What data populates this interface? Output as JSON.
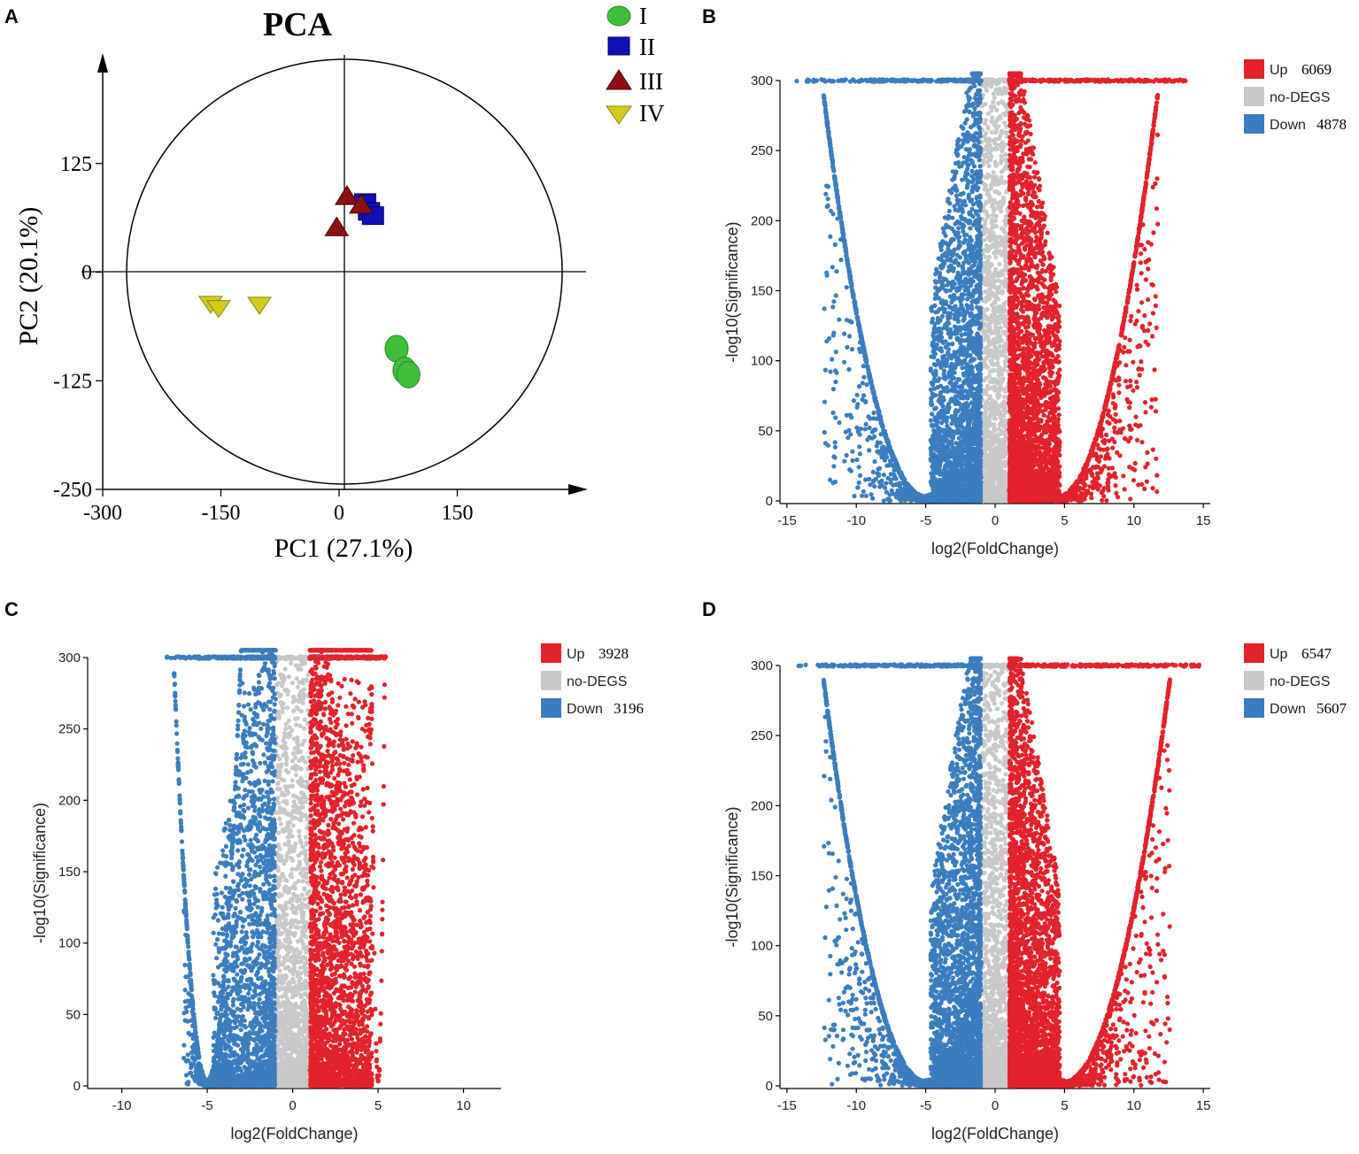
{
  "colors": {
    "up": "#e3222b",
    "nodeg": "#c8c8c8",
    "down": "#3a7dbf",
    "group1": "#3fbf3a",
    "group2": "#1010b8",
    "group3": "#8b1010",
    "group4": "#d4cc1c"
  },
  "chart_data": [
    {
      "panel": "A",
      "type": "scatter",
      "title": "PCA",
      "xlabel": "PC1 (27.1%)",
      "ylabel": "PC2 (20.1%)",
      "xlim": [
        -300,
        300
      ],
      "ylim": [
        -250,
        250
      ],
      "xticks": [
        -300,
        -150,
        0,
        150
      ],
      "yticks": [
        -250,
        -125,
        0,
        125
      ],
      "xtick_labels": [
        "-300",
        "-150",
        "0",
        "150"
      ],
      "ytick_labels": [
        "-250",
        "-125",
        "0",
        "125"
      ],
      "legend": [
        "I",
        "II",
        "III",
        "IV"
      ],
      "series": [
        {
          "name": "I",
          "marker": "ellipse",
          "color_key": "group1",
          "points": [
            [
              73,
              -88
            ],
            [
              83,
              -113
            ],
            [
              88,
              -118
            ]
          ]
        },
        {
          "name": "II",
          "marker": "square",
          "color_key": "group2",
          "points": [
            [
              33,
              80
            ],
            [
              38,
              70
            ],
            [
              43,
              65
            ]
          ]
        },
        {
          "name": "III",
          "marker": "triangle-up",
          "color_key": "group3",
          "points": [
            [
              10,
              88
            ],
            [
              28,
              78
            ],
            [
              -3,
              52
            ]
          ]
        },
        {
          "name": "IV",
          "marker": "triangle-down",
          "color_key": "group4",
          "points": [
            [
              -163,
              -37
            ],
            [
              -153,
              -42
            ],
            [
              -101,
              -38
            ]
          ]
        }
      ]
    },
    {
      "panel": "B",
      "type": "scatter",
      "variant": "volcano",
      "xlabel": "log2(FoldChange)",
      "ylabel": "-log10(Significance)",
      "xlim": [
        -15.5,
        15.5
      ],
      "ylim": [
        0,
        300
      ],
      "xticks": [
        -15,
        -10,
        -5,
        0,
        5,
        10,
        15
      ],
      "yticks": [
        0,
        50,
        100,
        150,
        200,
        250,
        300
      ],
      "xtick_labels": [
        "-15",
        "-10",
        "-5",
        "0",
        "5",
        "10",
        "15"
      ],
      "ytick_labels": [
        "0",
        "50",
        "100",
        "150",
        "200",
        "250",
        "300"
      ],
      "legend": [
        {
          "label": "Up",
          "count": "6069",
          "color_key": "up"
        },
        {
          "label": "no-DEGS",
          "count": "",
          "color_key": "nodeg"
        },
        {
          "label": "Down",
          "count": "4878",
          "color_key": "down"
        }
      ],
      "up_count": 6069,
      "down_count": 4878,
      "threshold_log2fc": 1,
      "left_curve_min_x": -5,
      "right_curve_min_x": 4.5,
      "cap_left_x": -14.5,
      "cap_right_x": 13.8
    },
    {
      "panel": "C",
      "type": "scatter",
      "variant": "volcano",
      "xlabel": "log2(FoldChange)",
      "ylabel": "-log10(Significance)",
      "xlim": [
        -12,
        12.2
      ],
      "ylim": [
        0,
        300
      ],
      "xticks": [
        -10,
        -5,
        0,
        5,
        10
      ],
      "yticks": [
        0,
        50,
        100,
        150,
        200,
        250,
        300
      ],
      "xtick_labels": [
        "-10",
        "-5",
        "0",
        "5",
        "10"
      ],
      "ytick_labels": [
        "0",
        "50",
        "100",
        "150",
        "200",
        "250",
        "300"
      ],
      "legend": [
        {
          "label": "Up",
          "count": "3928",
          "color_key": "up"
        },
        {
          "label": "no-DEGS",
          "count": "",
          "color_key": "nodeg"
        },
        {
          "label": "Down",
          "count": "3196",
          "color_key": "down"
        }
      ],
      "up_count": 3928,
      "down_count": 3196,
      "threshold_log2fc": 1,
      "left_curve_min_x": -5,
      "right_curve_min_x": 5,
      "cap_left_x": -7.5,
      "cap_right_x": 5.5
    },
    {
      "panel": "D",
      "type": "scatter",
      "variant": "volcano",
      "xlabel": "log2(FoldChange)",
      "ylabel": "-log10(Significance)",
      "xlim": [
        -15.5,
        15.5
      ],
      "ylim": [
        0,
        300
      ],
      "xticks": [
        -15,
        -10,
        -5,
        0,
        5,
        10,
        15
      ],
      "yticks": [
        0,
        50,
        100,
        150,
        200,
        250,
        300
      ],
      "xtick_labels": [
        "-15",
        "-10",
        "-5",
        "0",
        "5",
        "10",
        "15"
      ],
      "ytick_labels": [
        "0",
        "50",
        "100",
        "150",
        "200",
        "250",
        "300"
      ],
      "legend": [
        {
          "label": "Up",
          "count": "6547",
          "color_key": "up"
        },
        {
          "label": "no-DEGS",
          "count": "",
          "color_key": "nodeg"
        },
        {
          "label": "Down",
          "count": "5607",
          "color_key": "down"
        }
      ],
      "up_count": 6547,
      "down_count": 5607,
      "threshold_log2fc": 1,
      "left_curve_min_x": -5,
      "right_curve_min_x": 5,
      "cap_left_x": -14.5,
      "cap_right_x": 14.8
    }
  ]
}
